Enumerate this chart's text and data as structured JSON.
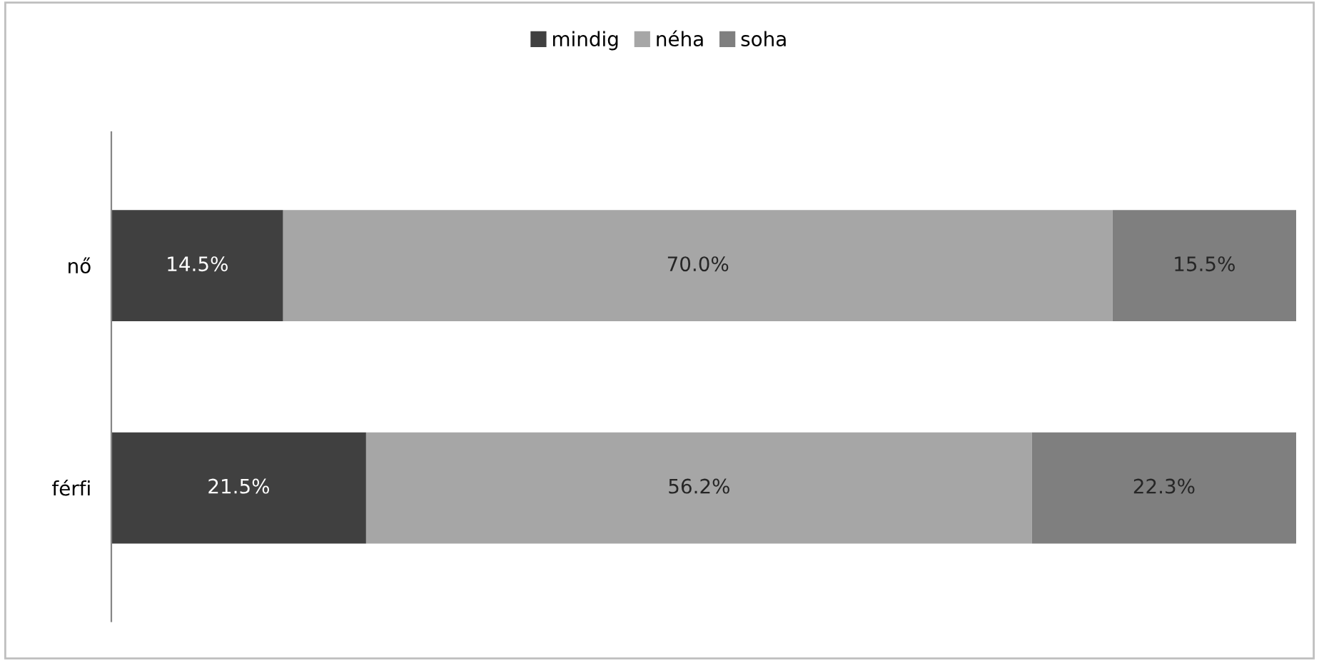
{
  "chart_data": {
    "type": "bar",
    "orientation": "horizontal",
    "stacked": true,
    "legend": "top",
    "categories": [
      "nő",
      "férfi"
    ],
    "series": [
      {
        "name": "mindig",
        "color": "#404040",
        "values": [
          14.5,
          21.5
        ],
        "value_labels": [
          "14.5%",
          "21.5%"
        ]
      },
      {
        "name": "néha",
        "color": "#a6a6a6",
        "values": [
          70.0,
          56.2
        ],
        "value_labels": [
          "70.0%",
          "56.2%"
        ]
      },
      {
        "name": "soha",
        "color": "#7f7f7f",
        "values": [
          15.5,
          22.3
        ],
        "value_labels": [
          "15.5%",
          "22.3%"
        ]
      }
    ]
  }
}
